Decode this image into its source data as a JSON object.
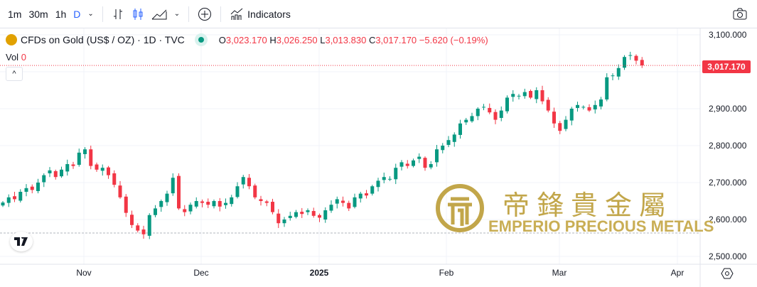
{
  "toolbar": {
    "intervals": [
      "1m",
      "30m",
      "1h",
      "D"
    ],
    "active_interval": "D",
    "indicators_label": "Indicators"
  },
  "legend": {
    "symbol": "CFDs on Gold (US$ / OZ) · 1D · TVC",
    "o_label": "O",
    "o": "3,023.170",
    "h_label": "H",
    "h": "3,026.250",
    "l_label": "L",
    "l": "3,013.830",
    "c_label": "C",
    "c": "3,017.170",
    "change": "−5.620 (−0.19%)",
    "vol_label": "Vol",
    "vol": "0"
  },
  "last_price": "3,017.170",
  "colors": {
    "up": "#089981",
    "down": "#f23645",
    "grid": "#f0f3fa"
  },
  "watermark": {
    "chinese": "帝鋒貴金屬",
    "english": "EMPERIO PRECIOUS METALS"
  },
  "chart_data": {
    "type": "candlestick",
    "y_ticks": [
      "3,100.000",
      "3,000.000",
      "2,900.000",
      "2,800.000",
      "2,700.000",
      "2,600.000",
      "2,500.000"
    ],
    "y_values": [
      3100,
      3000,
      2900,
      2800,
      2700,
      2600,
      2500
    ],
    "x_ticks": [
      "Nov",
      "Dec",
      "2025",
      "Feb",
      "Mar",
      "Apr"
    ],
    "ylim": [
      2500,
      3100
    ],
    "closes": [
      2646,
      2660,
      2655,
      2675,
      2685,
      2680,
      2700,
      2720,
      2733,
      2715,
      2735,
      2750,
      2745,
      2781,
      2790,
      2745,
      2735,
      2740,
      2720,
      2694,
      2660,
      2618,
      2585,
      2570,
      2560,
      2612,
      2630,
      2650,
      2670,
      2713,
      2630,
      2620,
      2640,
      2650,
      2645,
      2640,
      2650,
      2635,
      2645,
      2660,
      2690,
      2715,
      2690,
      2660,
      2650,
      2645,
      2620,
      2590,
      2600,
      2610,
      2620,
      2615,
      2625,
      2610,
      2605,
      2625,
      2640,
      2655,
      2645,
      2630,
      2660,
      2670,
      2665,
      2690,
      2705,
      2715,
      2710,
      2740,
      2755,
      2745,
      2760,
      2770,
      2740,
      2750,
      2790,
      2800,
      2815,
      2830,
      2860,
      2870,
      2880,
      2900,
      2905,
      2890,
      2870,
      2895,
      2930,
      2940,
      2935,
      2945,
      2930,
      2950,
      2920,
      2895,
      2860,
      2840,
      2870,
      2900,
      2910,
      2905,
      2895,
      2910,
      2925,
      2985,
      2990,
      3010,
      3040,
      3045,
      3030,
      3017.17
    ]
  }
}
